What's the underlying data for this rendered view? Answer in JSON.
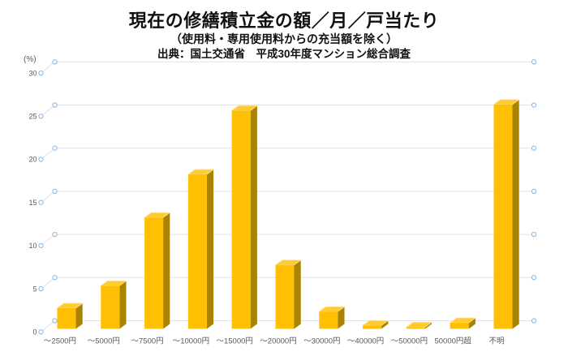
{
  "chart_data": {
    "type": "bar",
    "style": "3d-column",
    "title": "現在の修繕積立金の額／月／戸当たり",
    "subtitle": "（使用料・専用使用料からの充当額を除く）",
    "source": "出典：国土交通省　平成30年度マンション総合調査",
    "y_unit_label": "(%)",
    "categories": [
      "～2500円",
      "～5000円",
      "～7500円",
      "～10000円",
      "～15000円",
      "～20000円",
      "～30000円",
      "～40000円",
      "～50000円",
      "50000円超",
      "不明"
    ],
    "values": [
      2.4,
      5.0,
      12.9,
      17.9,
      25.3,
      7.4,
      2.0,
      0.4,
      0.2,
      0.7,
      26.0
    ],
    "ylim": [
      0,
      30
    ],
    "yticks": [
      0,
      5,
      10,
      15,
      20,
      25,
      30
    ],
    "grid": true,
    "legend": "none",
    "colors": {
      "bar_front": "#FFC003",
      "bar_side": "#A98304",
      "bar_top": "#FFCB2E",
      "bar_top_highlight": "#FFE49B",
      "gridline": "#E2E2E2",
      "marker_stroke": "#8FB8DE",
      "marker_fill": "#FFFFFF",
      "tick_label": "#595959",
      "title_color": "#111111"
    }
  }
}
